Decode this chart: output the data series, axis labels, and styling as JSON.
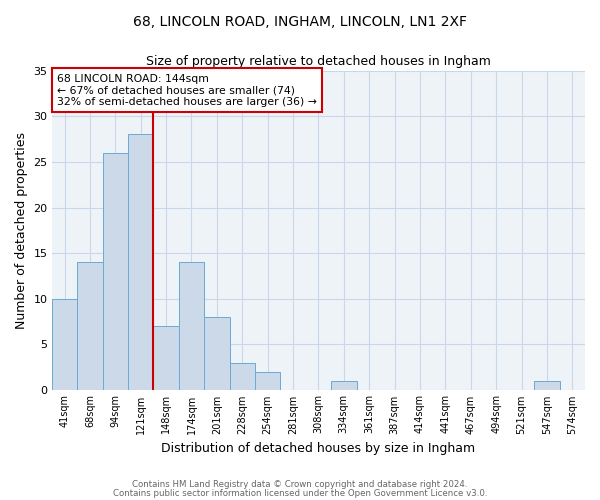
{
  "title": "68, LINCOLN ROAD, INGHAM, LINCOLN, LN1 2XF",
  "subtitle": "Size of property relative to detached houses in Ingham",
  "xlabel": "Distribution of detached houses by size in Ingham",
  "ylabel": "Number of detached properties",
  "categories": [
    "41sqm",
    "68sqm",
    "94sqm",
    "121sqm",
    "148sqm",
    "174sqm",
    "201sqm",
    "228sqm",
    "254sqm",
    "281sqm",
    "308sqm",
    "334sqm",
    "361sqm",
    "387sqm",
    "414sqm",
    "441sqm",
    "467sqm",
    "494sqm",
    "521sqm",
    "547sqm",
    "574sqm"
  ],
  "values": [
    10,
    14,
    26,
    28,
    7,
    14,
    8,
    3,
    2,
    0,
    0,
    1,
    0,
    0,
    0,
    0,
    0,
    0,
    0,
    1,
    0
  ],
  "bar_color": "#ccd9e8",
  "bar_edge_color": "#6aaad4",
  "vline_x": 3.5,
  "vline_color": "#cc0000",
  "annotation_title": "68 LINCOLN ROAD: 144sqm",
  "annotation_line1": "← 67% of detached houses are smaller (74)",
  "annotation_line2": "32% of semi-detached houses are larger (36) →",
  "annotation_box_color": "#cc0000",
  "ylim": [
    0,
    35
  ],
  "yticks": [
    0,
    5,
    10,
    15,
    20,
    25,
    30,
    35
  ],
  "footnote1": "Contains HM Land Registry data © Crown copyright and database right 2024.",
  "footnote2": "Contains public sector information licensed under the Open Government Licence v3.0.",
  "background_color": "#ffffff",
  "grid_color": "#c8d8e8"
}
